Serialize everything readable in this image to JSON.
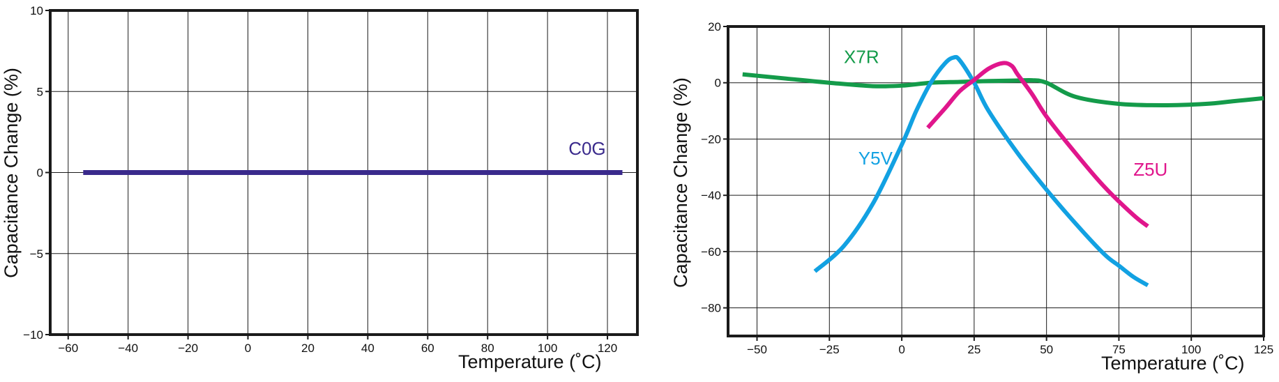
{
  "chart_data": [
    {
      "type": "line",
      "title": "",
      "xlabel": "Temperature (˚C)",
      "ylabel": "Capacitance Change (%)",
      "xlim": [
        -66,
        130
      ],
      "ylim": [
        -10,
        10
      ],
      "xticks": [
        -60,
        -40,
        -20,
        0,
        20,
        40,
        60,
        80,
        100,
        120
      ],
      "xtick_labels": [
        "−60",
        "−40",
        "−20",
        "0",
        "20",
        "40",
        "60",
        "80",
        "100",
        "120"
      ],
      "yticks": [
        10,
        5,
        0,
        -5,
        -10
      ],
      "ytick_labels": [
        "10",
        "5",
        "0",
        "−5",
        "−10"
      ],
      "grid": true,
      "series": [
        {
          "name": "C0G",
          "color": "#3a2a8c",
          "x": [
            -55,
            125
          ],
          "y": [
            0,
            0
          ],
          "label_pos": [
            107,
            1.1
          ]
        }
      ]
    },
    {
      "type": "line",
      "title": "",
      "xlabel": "Temperature (˚C)",
      "ylabel": "Capacitance Change (%)",
      "xlim": [
        -60,
        125
      ],
      "ylim": [
        -90,
        20
      ],
      "xticks": [
        -50,
        -25,
        0,
        25,
        50,
        75,
        100,
        125
      ],
      "xtick_labels": [
        "−50",
        "−25",
        "0",
        "25",
        "50",
        "75",
        "100",
        "125"
      ],
      "yticks": [
        20,
        0,
        -20,
        -40,
        -60,
        -80
      ],
      "ytick_labels": [
        "20",
        "0",
        "−20",
        "−40",
        "−60",
        "−80"
      ],
      "grid": true,
      "series": [
        {
          "name": "X7R",
          "color": "#149b4a",
          "x": [
            -55,
            -40,
            -25,
            -10,
            0,
            10,
            20,
            30,
            40,
            45,
            50,
            60,
            75,
            90,
            105,
            115,
            125
          ],
          "y": [
            3,
            1.5,
            0,
            -1.2,
            -1,
            0,
            0.3,
            0.6,
            0.8,
            0.9,
            0,
            -5,
            -7.5,
            -8,
            -7.5,
            -6.5,
            -5.5
          ],
          "label_pos": [
            -20,
            7
          ]
        },
        {
          "name": "Y5V",
          "color": "#12a1e2",
          "x": [
            -30,
            -20,
            -10,
            0,
            5,
            10,
            15,
            18,
            20,
            25,
            30,
            40,
            50,
            60,
            70,
            75,
            80,
            85
          ],
          "y": [
            -67,
            -58,
            -43,
            -22,
            -10,
            0,
            7,
            9,
            8,
            0,
            -10,
            -25,
            -38,
            -50,
            -61,
            -65,
            -69,
            -72
          ],
          "label_pos": [
            -15,
            -29
          ]
        },
        {
          "name": "Z5U",
          "color": "#e0168c",
          "x": [
            9,
            15,
            20,
            25,
            30,
            35,
            38,
            40,
            45,
            50,
            60,
            70,
            80,
            85
          ],
          "y": [
            -16,
            -9,
            -3,
            1,
            5,
            7,
            6,
            3,
            -4,
            -12,
            -25,
            -37,
            -47,
            -51
          ],
          "label_pos": [
            80,
            -33
          ]
        }
      ]
    }
  ]
}
